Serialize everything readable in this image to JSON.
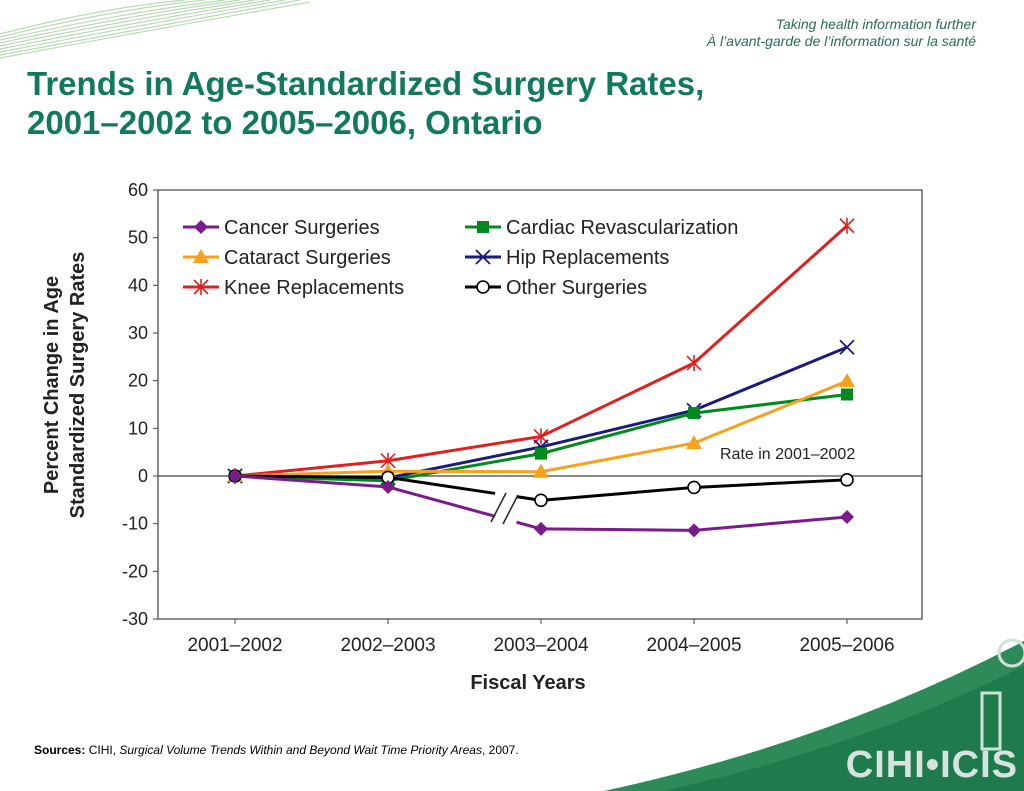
{
  "header": {
    "tagline_en": "Taking health information further",
    "tagline_fr": "À l’avant-garde de l’information sur la santé",
    "logo_text": "CIHI•ICIS"
  },
  "title": {
    "line1": "Trends in Age-Standardized Surgery Rates,",
    "line2": "2001–2002 to 2005–2006, Ontario"
  },
  "chart_data": {
    "type": "line",
    "title": "",
    "xlabel": "Fiscal Years",
    "ylabel_line1": "Percent Change in Age",
    "ylabel_line2": "Standardized Surgery Rates",
    "categories": [
      "2001–2002",
      "2002–2003",
      "2003–2004",
      "2004–2005",
      "2005–2006"
    ],
    "ylim": [
      -30,
      60
    ],
    "yticks": [
      60,
      50,
      40,
      30,
      20,
      10,
      0,
      -10,
      -20,
      -30
    ],
    "grid": false,
    "legend_position": "top-left",
    "annotation": "Rate in 2001–2002",
    "break_marker_between": [
      "2002–2003",
      "2003–2004"
    ],
    "series": [
      {
        "name": "Cancer Surgeries",
        "color": "#7b1a8c",
        "marker": "diamond",
        "values": [
          0,
          -2.3,
          -11.1,
          -11.4,
          -8.6
        ]
      },
      {
        "name": "Cardiac Revascularization",
        "color": "#008a1e",
        "marker": "square",
        "values": [
          0,
          -1.0,
          4.7,
          13.2,
          17.1
        ]
      },
      {
        "name": "Cataract Surgeries",
        "color": "#f7a21b",
        "marker": "triangle",
        "values": [
          0,
          1.0,
          0.9,
          6.9,
          19.9
        ]
      },
      {
        "name": "Hip Replacements",
        "color": "#1a1a7e",
        "marker": "x",
        "values": [
          0,
          -0.4,
          6.1,
          13.8,
          27.0
        ]
      },
      {
        "name": "Knee Replacements",
        "color": "#e0201f",
        "marker": "asterisk",
        "values": [
          0,
          3.2,
          8.3,
          23.7,
          52.5
        ]
      },
      {
        "name": "Other Surgeries",
        "color": "#000000",
        "marker": "circle",
        "values": [
          0,
          -0.3,
          -5.1,
          -2.4,
          -0.8
        ]
      }
    ]
  },
  "sources": {
    "label": "Sources:",
    "org": " CIHI, ",
    "publication": "Surgical Volume Trends Within and Beyond Wait Time Priority Areas",
    "year": ", 2007."
  }
}
